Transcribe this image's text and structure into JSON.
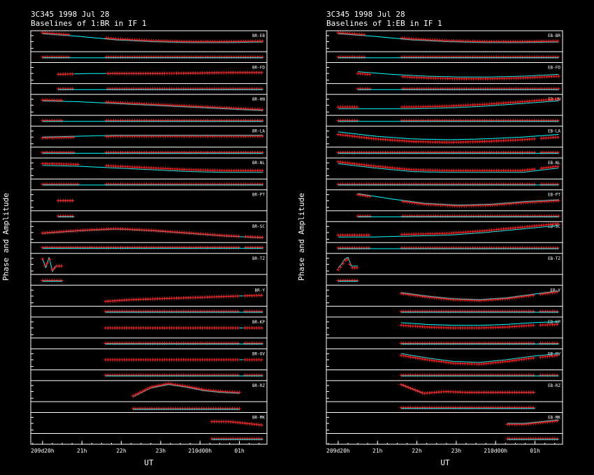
{
  "chart_data": [
    {
      "type": "line",
      "title": "3C345  1998 Jul 28",
      "subtitle": "Baselines of 1:BR in IF 1",
      "ylabel": "Phase and Amplitude",
      "xlabel": "UT",
      "x_ticks": [
        {
          "t": 20,
          "label": "209d20h"
        },
        {
          "t": 21,
          "label": "21h"
        },
        {
          "t": 22,
          "label": "22h"
        },
        {
          "t": 23,
          "label": "23h"
        },
        {
          "t": 24,
          "label": "210d00h"
        },
        {
          "t": 25,
          "label": "01h"
        }
      ],
      "xlim": [
        19.7,
        25.7
      ],
      "model_color": "#00ffff",
      "data_color": "#ff2020",
      "panels": [
        {
          "baseline": "BR-EB",
          "t_start": 20.0,
          "t_end": 25.6,
          "gap": [
            20.7,
            21.6
          ],
          "phase_curve": [
            0.95,
            0.8,
            0.6,
            0.5,
            0.45,
            0.45,
            0.48
          ],
          "phase_offset": 0.05,
          "amp_level": 0.5
        },
        {
          "baseline": "BR-FD",
          "t_start": 20.4,
          "t_end": 25.6,
          "gap": [
            20.8,
            21.6
          ],
          "phase_curve": [
            0.45,
            0.5,
            0.5,
            0.5,
            0.52,
            0.55,
            0.55
          ],
          "phase_offset": 0.0,
          "amp_level": 0.5
        },
        {
          "baseline": "BR-HN",
          "t_start": 20.0,
          "t_end": 25.6,
          "gap": [
            20.5,
            21.6
          ],
          "phase_curve": [
            0.75,
            0.7,
            0.6,
            0.5,
            0.4,
            0.3,
            0.2
          ],
          "phase_offset": 0.05,
          "amp_level": 0.5
        },
        {
          "baseline": "BR-LA",
          "t_start": 20.0,
          "t_end": 25.6,
          "gap": [
            20.8,
            21.6
          ],
          "phase_curve": [
            0.5,
            0.55,
            0.6,
            0.6,
            0.6,
            0.6,
            0.6
          ],
          "phase_offset": -0.05,
          "amp_level": 0.5
        },
        {
          "baseline": "BR-NL",
          "t_start": 20.0,
          "t_end": 25.6,
          "gap": [
            20.9,
            21.6
          ],
          "phase_curve": [
            0.7,
            0.65,
            0.55,
            0.45,
            0.35,
            0.3,
            0.3
          ],
          "phase_offset": 0.1,
          "amp_level": 0.5
        },
        {
          "baseline": "BR-PT",
          "t_start": 20.4,
          "t_end": 20.8,
          "gap": [
            25.0,
            25.1
          ],
          "phase_curve": [
            0.5,
            0.5,
            0.5,
            0.5,
            0.5,
            0.5,
            0.5
          ],
          "phase_offset": 0.0,
          "amp_level": 0.5
        },
        {
          "baseline": "BR-SC",
          "t_start": 20.0,
          "t_end": 25.6,
          "gap": [
            25.0,
            25.1
          ],
          "phase_curve": [
            0.45,
            0.6,
            0.7,
            0.6,
            0.45,
            0.3,
            0.2
          ],
          "phase_offset": 0.02,
          "amp_level": 0.55
        },
        {
          "baseline": "BR-TZ",
          "t_start": 20.0,
          "t_end": 20.5,
          "gap": [
            25.0,
            25.1
          ],
          "phase_curve": [
            0.8,
            0.3,
            0.9,
            0.1,
            0.4,
            0.4,
            0.4
          ],
          "phase_offset": 0.0,
          "amp_level": 0.4
        },
        {
          "baseline": "BR-Y",
          "t_start": 21.6,
          "t_end": 25.6,
          "gap": [
            25.0,
            25.1
          ],
          "phase_curve": [
            0.2,
            0.3,
            0.35,
            0.4,
            0.45,
            0.5,
            0.55
          ],
          "phase_offset": 0.0,
          "amp_level": 0.5
        },
        {
          "baseline": "BR-KP",
          "t_start": 21.6,
          "t_end": 25.6,
          "gap": [
            25.0,
            25.1
          ],
          "phase_curve": [
            0.5,
            0.5,
            0.5,
            0.5,
            0.5,
            0.5,
            0.5
          ],
          "phase_offset": 0.0,
          "amp_level": 0.5
        },
        {
          "baseline": "BR-OV",
          "t_start": 21.6,
          "t_end": 25.6,
          "gap": [
            25.0,
            25.1
          ],
          "phase_curve": [
            0.5,
            0.5,
            0.5,
            0.5,
            0.5,
            0.5,
            0.5
          ],
          "phase_offset": 0.0,
          "amp_level": 0.5
        },
        {
          "baseline": "BR-RZ",
          "t_start": 22.3,
          "t_end": 25.0,
          "gap": [
            26.0,
            26.1
          ],
          "phase_curve": [
            0.2,
            0.7,
            0.9,
            0.75,
            0.55,
            0.45,
            0.4
          ],
          "phase_offset": 0.05,
          "amp_level": 0.3
        },
        {
          "baseline": "BR-MK",
          "t_start": 24.3,
          "t_end": 25.6,
          "gap": [
            26.0,
            26.1
          ],
          "phase_curve": [
            0.6,
            0.6,
            0.6,
            0.55,
            0.5,
            0.45,
            0.4
          ],
          "phase_offset": 0.0,
          "amp_level": 0.5
        }
      ]
    },
    {
      "type": "line",
      "title": "3C345  1998 Jul 28",
      "subtitle": "Baselines of 1:EB in IF 1",
      "ylabel": "Phase and Amplitude",
      "xlabel": "UT",
      "x_ticks": [
        {
          "t": 20,
          "label": "209d20h"
        },
        {
          "t": 21,
          "label": "21h"
        },
        {
          "t": 22,
          "label": "22h"
        },
        {
          "t": 23,
          "label": "23h"
        },
        {
          "t": 24,
          "label": "210d00h"
        },
        {
          "t": 25,
          "label": "01h"
        }
      ],
      "xlim": [
        19.7,
        25.7
      ],
      "model_color": "#00ffff",
      "data_color": "#ff2020",
      "panels": [
        {
          "baseline": "EB-BR",
          "t_start": 20.0,
          "t_end": 25.6,
          "gap": [
            20.7,
            21.6
          ],
          "phase_curve": [
            0.95,
            0.8,
            0.6,
            0.5,
            0.45,
            0.45,
            0.48
          ],
          "phase_offset": 0.05,
          "amp_level": 0.5
        },
        {
          "baseline": "EB-FD",
          "t_start": 20.5,
          "t_end": 25.6,
          "gap": [
            20.8,
            21.6
          ],
          "phase_curve": [
            0.6,
            0.45,
            0.35,
            0.3,
            0.3,
            0.35,
            0.45
          ],
          "phase_offset": -0.1,
          "amp_level": 0.5
        },
        {
          "baseline": "EB-HN",
          "t_start": 20.0,
          "t_end": 25.6,
          "gap": [
            20.5,
            21.6
          ],
          "phase_curve": [
            0.3,
            0.3,
            0.3,
            0.35,
            0.45,
            0.6,
            0.75
          ],
          "phase_offset": 0.1,
          "amp_level": 0.5
        },
        {
          "baseline": "EB-LA",
          "t_start": 20.0,
          "t_end": 25.6,
          "gap": [
            25.0,
            25.1
          ],
          "phase_curve": [
            0.8,
            0.55,
            0.4,
            0.35,
            0.4,
            0.5,
            0.65
          ],
          "phase_offset": -0.15,
          "amp_level": 0.5
        },
        {
          "baseline": "EB-NL",
          "t_start": 20.0,
          "t_end": 25.6,
          "gap": [
            25.0,
            25.1
          ],
          "phase_curve": [
            0.8,
            0.55,
            0.35,
            0.3,
            0.3,
            0.3,
            0.55
          ],
          "phase_offset": 0.1,
          "amp_level": 0.5
        },
        {
          "baseline": "EB-PT",
          "t_start": 20.5,
          "t_end": 25.6,
          "gap": [
            20.8,
            21.6
          ],
          "phase_curve": [
            0.9,
            0.6,
            0.35,
            0.25,
            0.3,
            0.45,
            0.55
          ],
          "phase_offset": -0.05,
          "amp_level": 0.5
        },
        {
          "baseline": "EB-SC",
          "t_start": 20.0,
          "t_end": 25.6,
          "gap": [
            20.8,
            21.6
          ],
          "phase_curve": [
            0.25,
            0.25,
            0.3,
            0.35,
            0.5,
            0.7,
            0.9
          ],
          "phase_offset": 0.1,
          "amp_level": 0.5
        },
        {
          "baseline": "EB-TZ",
          "t_start": 20.0,
          "t_end": 20.5,
          "gap": [
            25.0,
            25.1
          ],
          "phase_curve": [
            0.3,
            0.5,
            0.8,
            0.9,
            0.4,
            0.4,
            0.4
          ],
          "phase_offset": -0.1,
          "amp_level": 0.4
        },
        {
          "baseline": "EB-Y",
          "t_start": 21.6,
          "t_end": 25.6,
          "gap": [
            25.0,
            25.1
          ],
          "phase_curve": [
            0.7,
            0.5,
            0.35,
            0.3,
            0.4,
            0.6,
            0.8
          ],
          "phase_offset": -0.05,
          "amp_level": 0.5
        },
        {
          "baseline": "EB-KP",
          "t_start": 21.6,
          "t_end": 25.6,
          "gap": [
            25.0,
            25.1
          ],
          "phase_curve": [
            0.8,
            0.7,
            0.65,
            0.65,
            0.7,
            0.8,
            0.85
          ],
          "phase_offset": -0.15,
          "amp_level": 0.5
        },
        {
          "baseline": "EB-OV",
          "t_start": 21.6,
          "t_end": 25.6,
          "gap": [
            25.0,
            25.1
          ],
          "phase_curve": [
            0.85,
            0.6,
            0.4,
            0.35,
            0.5,
            0.7,
            0.85
          ],
          "phase_offset": -0.1,
          "amp_level": 0.5
        },
        {
          "baseline": "EB-RZ",
          "t_start": 21.6,
          "t_end": 25.0,
          "gap": [
            26.0,
            26.1
          ],
          "phase_curve": [
            0.9,
            0.4,
            0.5,
            0.45,
            0.45,
            0.45,
            0.45
          ],
          "phase_offset": 0.0,
          "amp_level": 0.4
        },
        {
          "baseline": "EB-MK",
          "t_start": 24.3,
          "t_end": 25.6,
          "gap": [
            26.0,
            26.1
          ],
          "phase_curve": [
            0.5,
            0.5,
            0.5,
            0.55,
            0.6,
            0.65,
            0.7
          ],
          "phase_offset": -0.05,
          "amp_level": 0.5
        }
      ]
    }
  ]
}
